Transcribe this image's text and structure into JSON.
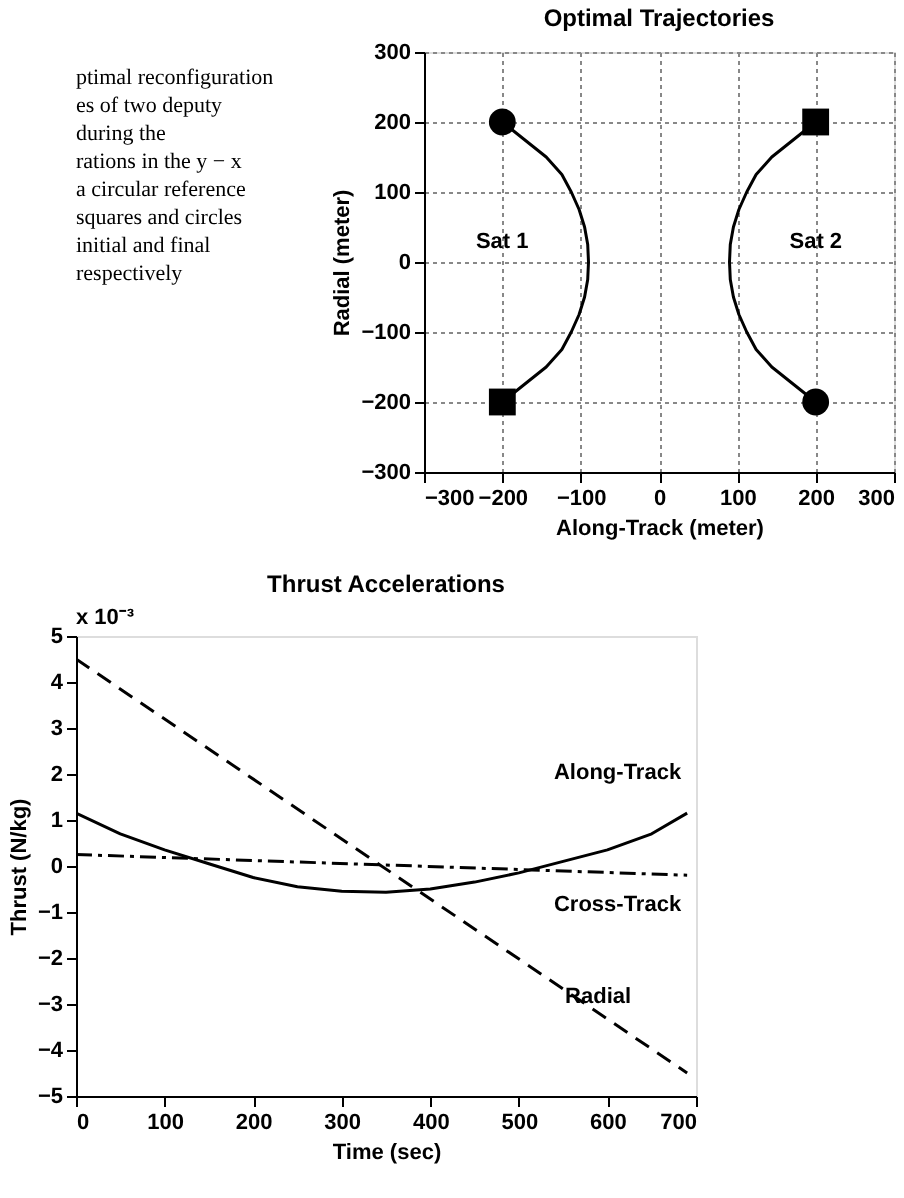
{
  "chart_data": [
    {
      "type": "line",
      "title": "Optimal Trajectories",
      "xlabel": "Along-Track (meter)",
      "ylabel": "Radial (meter)",
      "xlim": [
        -300,
        300
      ],
      "ylim": [
        -300,
        300
      ],
      "xticks": [
        -300,
        -200,
        -100,
        0,
        100,
        200,
        300
      ],
      "yticks": [
        -300,
        -200,
        -100,
        0,
        100,
        200,
        300
      ],
      "grid": true,
      "annotations": [
        "ptimal reconfiguration",
        "es of two deputy",
        "during the",
        "rations in the y − x",
        "a circular reference",
        "squares and circles",
        "initial and final",
        "respectively"
      ],
      "series": [
        {
          "name": "Sat 1",
          "color": "#000000",
          "type": "line",
          "line_style": "solid",
          "marker": "none",
          "x": [
            -200,
            -172,
            -144,
            -124,
            -112,
            -102,
            -95,
            -91,
            -90,
            -91,
            -95,
            -102,
            -112,
            -124,
            -144,
            -172,
            -200
          ],
          "values": [
            200,
            175,
            150,
            125,
            100,
            75,
            50,
            25,
            0,
            -25,
            -50,
            -75,
            -100,
            -125,
            -150,
            -175,
            -200
          ]
        },
        {
          "name": "Sat 2",
          "color": "#000000",
          "type": "line",
          "line_style": "solid",
          "marker": "none",
          "x": [
            200,
            172,
            144,
            124,
            112,
            102,
            95,
            91,
            90,
            91,
            95,
            102,
            112,
            124,
            144,
            172,
            200
          ],
          "values": [
            200,
            175,
            150,
            125,
            100,
            75,
            50,
            25,
            0,
            -25,
            -50,
            -75,
            -100,
            -125,
            -150,
            -175,
            -200
          ]
        },
        {
          "color": "#000000",
          "type": "scatter",
          "marker": "circle",
          "x": [
            -200,
            200
          ],
          "values": [
            200,
            -200
          ]
        },
        {
          "color": "#000000",
          "type": "scatter",
          "marker": "square",
          "x": [
            -200,
            200
          ],
          "values": [
            -200,
            200
          ]
        }
      ]
    },
    {
      "type": "line",
      "title": "Thrust Accelerations",
      "xlabel": "Time (sec)",
      "ylabel": "Thrust (N/kg)",
      "xlim": [
        0,
        700
      ],
      "ylim": [
        -5,
        5
      ],
      "xticks": [
        0,
        100,
        200,
        300,
        400,
        500,
        600,
        700
      ],
      "yticks": [
        -5,
        -4,
        -3,
        -2,
        -1,
        0,
        1,
        2,
        3,
        4,
        5
      ],
      "grid": false,
      "annotations": [
        "x 10⁻³"
      ],
      "series": [
        {
          "name": "Along-Track",
          "color": "#000000",
          "line_style": "solid",
          "x": [
            0,
            50,
            100,
            150,
            200,
            250,
            300,
            350,
            400,
            450,
            500,
            550,
            600,
            650,
            690
          ],
          "values": [
            1.15,
            0.7,
            0.35,
            0.05,
            -0.25,
            -0.45,
            -0.55,
            -0.57,
            -0.5,
            -0.35,
            -0.15,
            0.1,
            0.35,
            0.7,
            1.15
          ]
        },
        {
          "name": "Cross-Track",
          "color": "#000000",
          "line_style": "dashdot",
          "x": [
            0,
            690
          ],
          "values": [
            0.25,
            -0.2
          ]
        },
        {
          "name": "Radial",
          "color": "#000000",
          "line_style": "dashed",
          "x": [
            0,
            690
          ],
          "values": [
            4.5,
            -4.5
          ]
        }
      ]
    }
  ]
}
